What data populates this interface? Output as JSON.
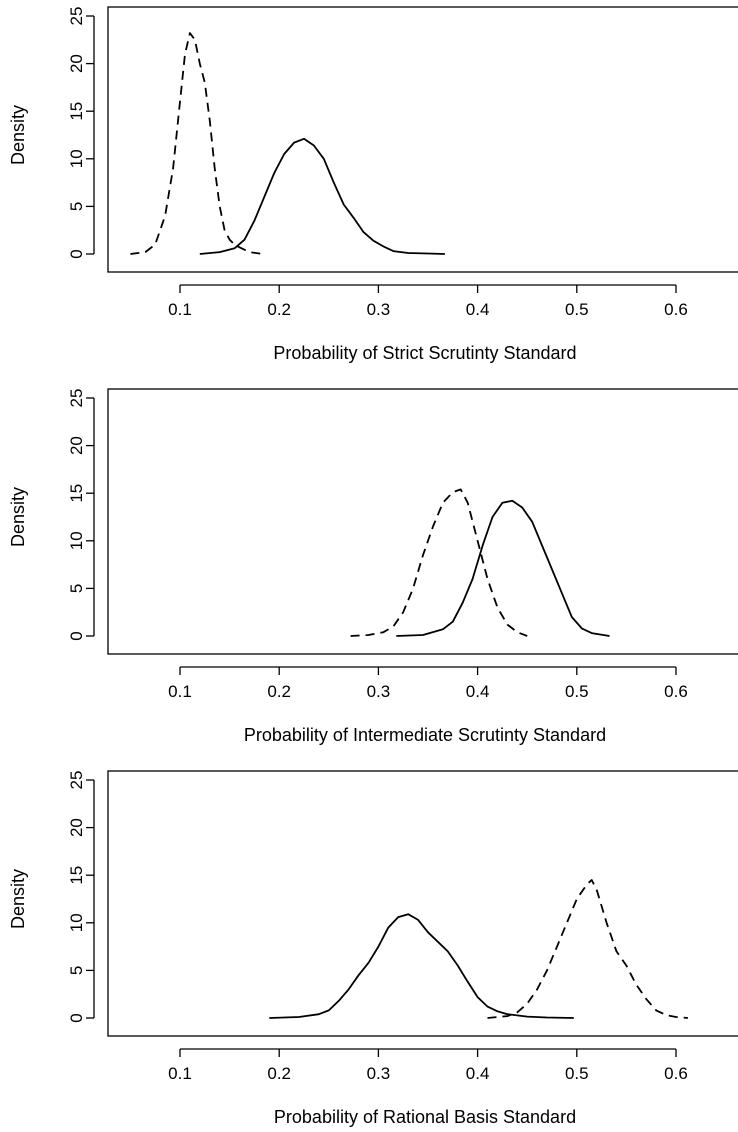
{
  "chart_data": [
    {
      "type": "line",
      "xlabel": "Probability of Strict Scrutinty Standard",
      "ylabel": "Density",
      "xlim": [
        0.03,
        0.66
      ],
      "ylim": [
        0,
        25
      ],
      "xticks": [
        "0.1",
        "0.2",
        "0.3",
        "0.4",
        "0.5",
        "0.6"
      ],
      "yticks": [
        "0",
        "5",
        "10",
        "15",
        "20",
        "25"
      ],
      "series": [
        {
          "style": "dashed",
          "x": [
            0.05,
            0.065,
            0.075,
            0.085,
            0.093,
            0.1,
            0.105,
            0.11,
            0.115,
            0.12,
            0.125,
            0.13,
            0.135,
            0.14,
            0.145,
            0.15,
            0.155,
            0.16,
            0.17,
            0.18,
            0.187
          ],
          "y": [
            0,
            0.2,
            1,
            4,
            9,
            16,
            21,
            23.2,
            22.5,
            20,
            18,
            14,
            9,
            5,
            2.5,
            1.5,
            1,
            0.7,
            0.2,
            0.05,
            0
          ]
        },
        {
          "style": "solid",
          "x": [
            0.12,
            0.14,
            0.155,
            0.165,
            0.175,
            0.185,
            0.195,
            0.205,
            0.215,
            0.225,
            0.235,
            0.245,
            0.255,
            0.265,
            0.275,
            0.285,
            0.295,
            0.305,
            0.315,
            0.33,
            0.35,
            0.367
          ],
          "y": [
            0,
            0.2,
            0.6,
            1.5,
            3.5,
            6,
            8.5,
            10.5,
            11.7,
            12.1,
            11.4,
            10,
            7.5,
            5.2,
            3.8,
            2.3,
            1.4,
            0.8,
            0.3,
            0.1,
            0.05,
            0
          ]
        }
      ]
    },
    {
      "type": "line",
      "xlabel": "Probability of Intermediate Scrutinty Standard",
      "ylabel": "Density",
      "xlim": [
        0.03,
        0.66
      ],
      "ylim": [
        0,
        25
      ],
      "xticks": [
        "0.1",
        "0.2",
        "0.3",
        "0.4",
        "0.5",
        "0.6"
      ],
      "yticks": [
        "0",
        "5",
        "10",
        "15",
        "20",
        "25"
      ],
      "series": [
        {
          "style": "dashed",
          "x": [
            0.272,
            0.29,
            0.305,
            0.315,
            0.325,
            0.335,
            0.345,
            0.355,
            0.365,
            0.375,
            0.383,
            0.39,
            0.4,
            0.41,
            0.42,
            0.43,
            0.44,
            0.45
          ],
          "y": [
            0,
            0.1,
            0.4,
            1,
            2.5,
            5,
            8.5,
            11.5,
            14,
            15.1,
            15.4,
            14,
            10,
            6,
            3,
            1.2,
            0.4,
            0
          ],
          "y_note": ""
        },
        {
          "style": "solid",
          "x": [
            0.318,
            0.345,
            0.365,
            0.375,
            0.385,
            0.395,
            0.405,
            0.415,
            0.425,
            0.435,
            0.445,
            0.455,
            0.465,
            0.475,
            0.485,
            0.495,
            0.505,
            0.515,
            0.533
          ],
          "y": [
            0,
            0.1,
            0.7,
            1.5,
            3.5,
            6,
            9.5,
            12.5,
            14,
            14.2,
            13.5,
            12,
            9.5,
            7,
            4.5,
            2,
            0.8,
            0.3,
            0
          ]
        }
      ]
    },
    {
      "type": "line",
      "xlabel": "Probability of Rational Basis Standard",
      "ylabel": "Density",
      "xlim": [
        0.03,
        0.66
      ],
      "ylim": [
        0,
        25
      ],
      "xticks": [
        "0.1",
        "0.2",
        "0.3",
        "0.4",
        "0.5",
        "0.6"
      ],
      "yticks": [
        "0",
        "5",
        "10",
        "15",
        "20",
        "25"
      ],
      "series": [
        {
          "style": "dashed",
          "x": [
            0.41,
            0.43,
            0.44,
            0.45,
            0.46,
            0.47,
            0.48,
            0.49,
            0.5,
            0.51,
            0.515,
            0.52,
            0.53,
            0.54,
            0.55,
            0.56,
            0.57,
            0.58,
            0.59,
            0.6,
            0.612
          ],
          "y": [
            0,
            0.2,
            0.6,
            1.5,
            3,
            5,
            7.5,
            10,
            12.5,
            14,
            14.5,
            13.5,
            10,
            7,
            5.5,
            3.5,
            2,
            0.8,
            0.3,
            0.1,
            0
          ]
        },
        {
          "style": "solid",
          "x": [
            0.19,
            0.22,
            0.24,
            0.25,
            0.26,
            0.27,
            0.28,
            0.29,
            0.3,
            0.31,
            0.32,
            0.33,
            0.34,
            0.35,
            0.36,
            0.37,
            0.38,
            0.39,
            0.4,
            0.41,
            0.42,
            0.43,
            0.45,
            0.47,
            0.497
          ],
          "y": [
            0,
            0.1,
            0.4,
            0.8,
            1.8,
            3,
            4.5,
            5.8,
            7.5,
            9.5,
            10.6,
            10.9,
            10.3,
            9,
            8,
            7,
            5.5,
            3.8,
            2.2,
            1.2,
            0.7,
            0.4,
            0.15,
            0.05,
            0
          ]
        }
      ]
    }
  ]
}
